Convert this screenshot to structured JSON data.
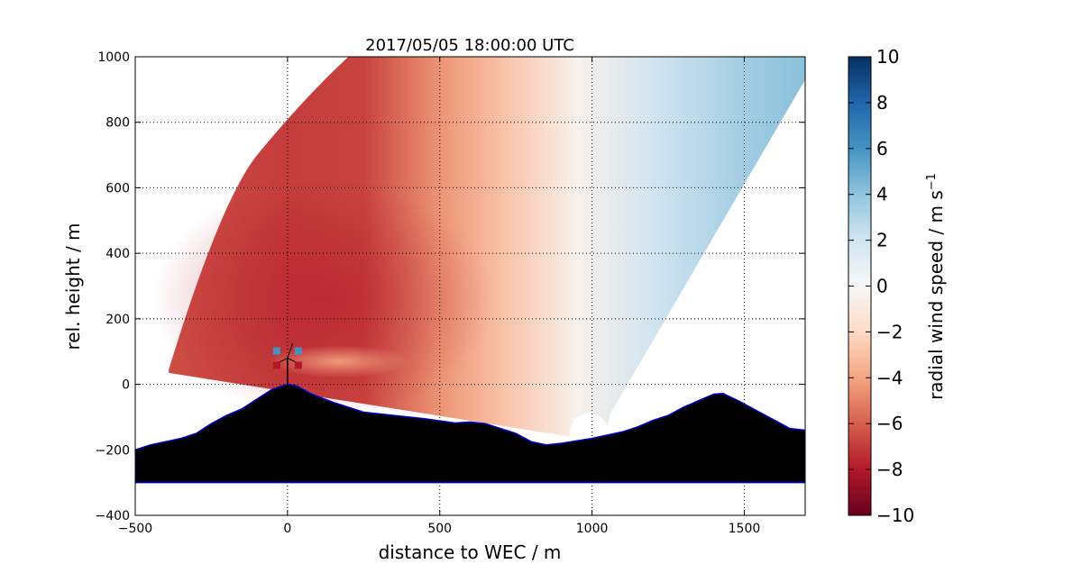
{
  "chart_data": {
    "type": "heatmap",
    "title": "2017/05/05 18:00:00 UTC",
    "xlabel": "distance to WEC / m",
    "ylabel": "rel. height / m",
    "xlim": [
      -500,
      1700
    ],
    "ylim": [
      -400,
      1000
    ],
    "xticks": [
      -500,
      0,
      500,
      1000,
      1500
    ],
    "yticks": [
      -400,
      -200,
      0,
      200,
      400,
      600,
      800,
      1000
    ],
    "grid": true,
    "colorbar": {
      "label": "radial wind speed / m s",
      "label_exponent": "−1",
      "range": [
        -10,
        10
      ],
      "ticks": [
        -10,
        -8,
        -6,
        -4,
        -2,
        0,
        2,
        4,
        6,
        8,
        10
      ],
      "colormap": "RdBu",
      "colormap_colors": [
        "#67001f",
        "#b2182b",
        "#d6604d",
        "#f4a582",
        "#fddbc7",
        "#f7f7f7",
        "#d1e5f0",
        "#92c5de",
        "#4393c3",
        "#2166ac",
        "#053061"
      ]
    },
    "scan_sector": {
      "description_values": "radial wind speed field from lidar scan",
      "origin": [
        1000,
        -120
      ],
      "edge_points": [
        [
          -390,
          45
        ],
        [
          -300,
          330
        ],
        [
          -100,
          700
        ],
        [
          200,
          1000
        ],
        [
          1700,
          1000
        ],
        [
          1700,
          930
        ],
        [
          1060,
          -90
        ]
      ],
      "values_along_x": [
        {
          "x": -390,
          "v": -6.5
        },
        {
          "x": 0,
          "v": -7.0
        },
        {
          "x": 250,
          "v": -6.8
        },
        {
          "x": 500,
          "v": -4.5
        },
        {
          "x": 700,
          "v": -3.0
        },
        {
          "x": 950,
          "v": -0.5
        },
        {
          "x": 1200,
          "v": 2.0
        },
        {
          "x": 1500,
          "v": 3.5
        },
        {
          "x": 1700,
          "v": 4.2
        }
      ]
    },
    "terrain": {
      "color": "#000000",
      "outline_color": "#0000cc",
      "base": -300,
      "profile": [
        [
          -500,
          -200
        ],
        [
          -450,
          -185
        ],
        [
          -400,
          -175
        ],
        [
          -350,
          -165
        ],
        [
          -300,
          -150
        ],
        [
          -250,
          -120
        ],
        [
          -200,
          -95
        ],
        [
          -150,
          -75
        ],
        [
          -100,
          -45
        ],
        [
          -50,
          -15
        ],
        [
          0,
          0
        ],
        [
          30,
          -5
        ],
        [
          80,
          -30
        ],
        [
          150,
          -55
        ],
        [
          250,
          -85
        ],
        [
          350,
          -95
        ],
        [
          450,
          -105
        ],
        [
          550,
          -118
        ],
        [
          600,
          -115
        ],
        [
          650,
          -120
        ],
        [
          700,
          -135
        ],
        [
          750,
          -150
        ],
        [
          800,
          -175
        ],
        [
          850,
          -185
        ],
        [
          900,
          -180
        ],
        [
          1000,
          -165
        ],
        [
          1100,
          -145
        ],
        [
          1150,
          -130
        ],
        [
          1200,
          -110
        ],
        [
          1250,
          -95
        ],
        [
          1300,
          -70
        ],
        [
          1350,
          -50
        ],
        [
          1400,
          -30
        ],
        [
          1430,
          -28
        ],
        [
          1480,
          -50
        ],
        [
          1550,
          -85
        ],
        [
          1600,
          -110
        ],
        [
          1650,
          -135
        ],
        [
          1700,
          -140
        ]
      ]
    },
    "turbine": {
      "x": 0,
      "hub_height": 80,
      "rotor_diameter": 100
    }
  }
}
